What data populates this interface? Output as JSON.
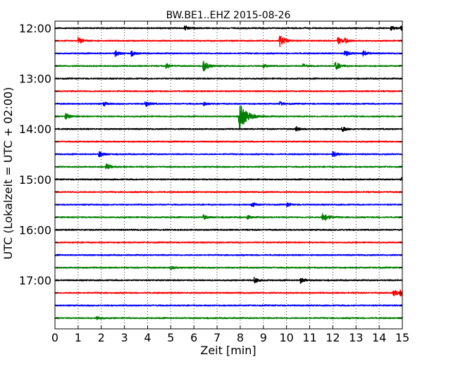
{
  "chart_data": {
    "type": "line",
    "title": "BW.BE1..EHZ 2015-08-26",
    "xlabel": "Zeit  [min]",
    "ylabel": "UTC (Lokalzeit = UTC + 02:00)",
    "xlim": [
      0,
      15
    ],
    "x_ticks": [
      "0",
      "1",
      "2",
      "3",
      "4",
      "5",
      "6",
      "7",
      "8",
      "9",
      "10",
      "11",
      "12",
      "13",
      "14",
      "15"
    ],
    "y_ticks": [
      "12:00",
      "13:00",
      "14:00",
      "15:00",
      "16:00",
      "17:00"
    ],
    "grid": "vertical dotted lines at each minute",
    "trace_colors": [
      "#000000",
      "#ff0000",
      "#0000ff",
      "#008000"
    ],
    "traces": [
      {
        "label": "12:00",
        "color": "#000000",
        "events": [
          {
            "t": 5.6,
            "amp": 0.5
          },
          {
            "t": 14.5,
            "amp": 0.5
          },
          {
            "t": 14.95,
            "amp": 0.6
          }
        ]
      },
      {
        "label": "12:15",
        "color": "#ff0000",
        "events": [
          {
            "t": 1.0,
            "amp": 0.7
          },
          {
            "t": 9.7,
            "amp": 1.3
          },
          {
            "t": 12.2,
            "amp": 0.8
          },
          {
            "t": 12.5,
            "amp": 0.5
          }
        ]
      },
      {
        "label": "12:30",
        "color": "#0000ff",
        "events": [
          {
            "t": 2.6,
            "amp": 0.6
          },
          {
            "t": 3.3,
            "amp": 0.5
          },
          {
            "t": 12.5,
            "amp": 0.7
          },
          {
            "t": 13.3,
            "amp": 0.6
          }
        ]
      },
      {
        "label": "12:45",
        "color": "#008000",
        "events": [
          {
            "t": 4.8,
            "amp": 0.5
          },
          {
            "t": 6.4,
            "amp": 1.2
          },
          {
            "t": 9.0,
            "amp": 0.4
          },
          {
            "t": 10.7,
            "amp": 0.4
          },
          {
            "t": 12.1,
            "amp": 0.9
          }
        ]
      },
      {
        "label": "13:00",
        "color": "#000000",
        "events": []
      },
      {
        "label": "13:15",
        "color": "#ff0000",
        "events": []
      },
      {
        "label": "13:30",
        "color": "#0000ff",
        "events": [
          {
            "t": 2.1,
            "amp": 0.4
          },
          {
            "t": 3.9,
            "amp": 0.6
          },
          {
            "t": 6.4,
            "amp": 0.4
          },
          {
            "t": 9.7,
            "amp": 0.4
          }
        ]
      },
      {
        "label": "13:45",
        "color": "#008000",
        "events": [
          {
            "t": 0.45,
            "amp": 0.7
          },
          {
            "t": 7.95,
            "amp": 3.0
          }
        ]
      },
      {
        "label": "14:00",
        "color": "#000000",
        "events": [
          {
            "t": 10.4,
            "amp": 0.5
          },
          {
            "t": 12.4,
            "amp": 0.5
          }
        ]
      },
      {
        "label": "14:15",
        "color": "#ff0000",
        "events": []
      },
      {
        "label": "14:30",
        "color": "#0000ff",
        "events": [
          {
            "t": 1.9,
            "amp": 0.6
          },
          {
            "t": 12.0,
            "amp": 0.6
          }
        ]
      },
      {
        "label": "14:45",
        "color": "#008000",
        "events": [
          {
            "t": 2.2,
            "amp": 0.7
          }
        ]
      },
      {
        "label": "15:00",
        "color": "#000000",
        "events": [
          {
            "t": 14.95,
            "amp": 0.4
          }
        ]
      },
      {
        "label": "15:15",
        "color": "#ff0000",
        "events": []
      },
      {
        "label": "15:30",
        "color": "#0000ff",
        "events": [
          {
            "t": 8.5,
            "amp": 0.5
          },
          {
            "t": 10.0,
            "amp": 0.4
          }
        ]
      },
      {
        "label": "15:45",
        "color": "#008000",
        "events": [
          {
            "t": 6.4,
            "amp": 0.5
          },
          {
            "t": 8.3,
            "amp": 0.4
          },
          {
            "t": 11.55,
            "amp": 1.2
          }
        ]
      },
      {
        "label": "16:00",
        "color": "#000000",
        "events": []
      },
      {
        "label": "16:15",
        "color": "#ff0000",
        "events": []
      },
      {
        "label": "16:30",
        "color": "#0000ff",
        "events": []
      },
      {
        "label": "16:45",
        "color": "#008000",
        "events": [
          {
            "t": 5.0,
            "amp": 0.4
          }
        ]
      },
      {
        "label": "17:00",
        "color": "#000000",
        "events": [
          {
            "t": 8.6,
            "amp": 0.6
          },
          {
            "t": 10.6,
            "amp": 0.6
          }
        ]
      },
      {
        "label": "17:15",
        "color": "#ff0000",
        "events": [
          {
            "t": 14.6,
            "amp": 0.7
          },
          {
            "t": 14.9,
            "amp": 0.6
          }
        ]
      },
      {
        "label": "17:30",
        "color": "#0000ff",
        "events": []
      },
      {
        "label": "17:45",
        "color": "#008000",
        "events": [
          {
            "t": 1.8,
            "amp": 0.4
          }
        ]
      }
    ]
  }
}
